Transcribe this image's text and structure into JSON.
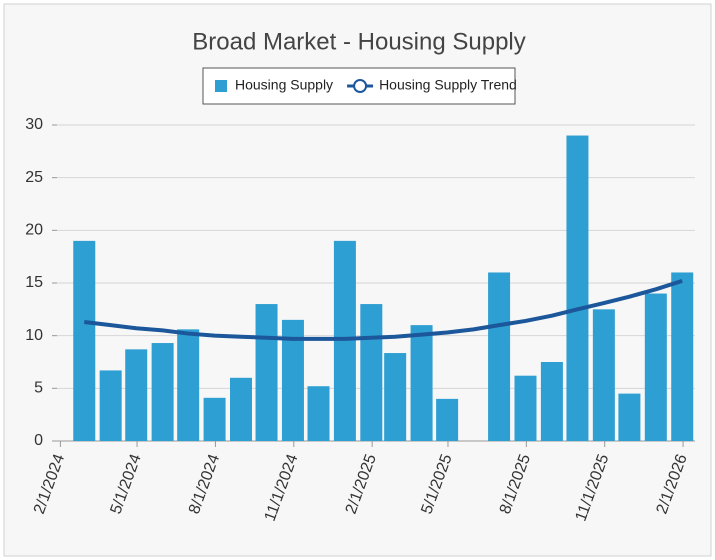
{
  "chart_data": {
    "type": "bar",
    "title": "Broad Market - Housing Supply",
    "x": [
      "2/29/2024",
      "3/31/2024",
      "4/30/2024",
      "5/31/2024",
      "6/30/2024",
      "7/31/2024",
      "8/31/2024",
      "9/30/2024",
      "10/31/2024",
      "11/30/2024",
      "12/31/2024",
      "1/31/2025",
      "2/28/2025",
      "3/31/2025",
      "4/30/2025",
      "5/31/2025",
      "6/30/2025",
      "7/31/2025",
      "8/31/2025",
      "9/30/2025",
      "10/31/2025",
      "11/30/2025",
      "12/31/2025",
      "1/31/2026"
    ],
    "series": [
      {
        "name": "Housing Supply",
        "type": "bar",
        "color": "#2e9fd2",
        "values": [
          19,
          6.7,
          8.7,
          9.3,
          10.6,
          4.1,
          6.0,
          13,
          11.5,
          5.2,
          19,
          13,
          8.35,
          11,
          4.0,
          null,
          16,
          6.2,
          7.5,
          29,
          12.5,
          4.5,
          14,
          16
        ]
      },
      {
        "name": "Housing Supply Trend",
        "type": "line",
        "color": "#1b579a",
        "values": [
          11.3,
          11.0,
          10.7,
          10.5,
          10.2,
          10.0,
          9.9,
          9.8,
          9.7,
          9.7,
          9.7,
          9.8,
          9.9,
          10.1,
          10.3,
          10.6,
          11.0,
          11.4,
          11.9,
          12.5,
          13.1,
          13.7,
          14.4,
          15.2
        ]
      }
    ],
    "xlim": [
      "1/28/2024",
      "2/15/2026"
    ],
    "xticks": [
      "2/1/2024",
      "5/1/2024",
      "8/1/2024",
      "11/1/2024",
      "2/1/2025",
      "5/1/2025",
      "8/1/2025",
      "11/1/2025",
      "2/1/2026"
    ],
    "ylim": [
      0,
      30
    ],
    "yticks": [
      0,
      5,
      10,
      15,
      20,
      25,
      30
    ],
    "grid": true,
    "legend": "top"
  }
}
